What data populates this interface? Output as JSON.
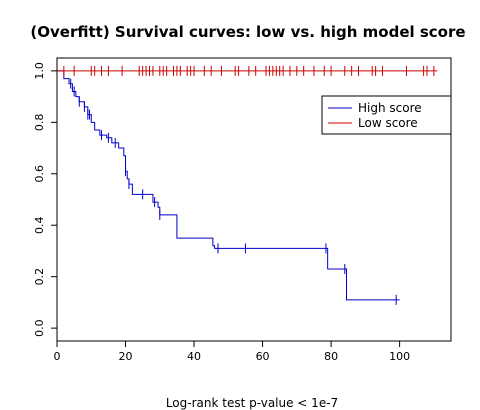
{
  "chart_data": {
    "type": "line",
    "title": "(Overfitt) Survival curves: low vs. high model score",
    "xlabel": "Log-rank test p-value  < 1e-7",
    "ylabel": "",
    "xlim": [
      0,
      115
    ],
    "ylim": [
      -0.05,
      1.05
    ],
    "x_ticks": [
      0,
      20,
      40,
      60,
      80,
      100
    ],
    "x_tick_labels": [
      "0",
      "20",
      "40",
      "60",
      "80",
      "100"
    ],
    "y_ticks": [
      0.0,
      0.2,
      0.4,
      0.6,
      0.8,
      1.0
    ],
    "y_tick_labels": [
      "0.0",
      "0.2",
      "0.4",
      "0.6",
      "0.8",
      "1.0"
    ],
    "grid": false,
    "legend_position": "top-right",
    "series": [
      {
        "name": "High score",
        "color": "#0000cc",
        "steps": [
          [
            0,
            1.0
          ],
          [
            2,
            0.97
          ],
          [
            3.5,
            0.95
          ],
          [
            4.5,
            0.92
          ],
          [
            5.5,
            0.9
          ],
          [
            6.5,
            0.88
          ],
          [
            8,
            0.86
          ],
          [
            9,
            0.83
          ],
          [
            10,
            0.8
          ],
          [
            11,
            0.77
          ],
          [
            12.5,
            0.75
          ],
          [
            14.5,
            0.74
          ],
          [
            16,
            0.72
          ],
          [
            18,
            0.7
          ],
          [
            19.5,
            0.67
          ],
          [
            20,
            0.61
          ],
          [
            20.5,
            0.58
          ],
          [
            21,
            0.56
          ],
          [
            22,
            0.52
          ],
          [
            27,
            0.52
          ],
          [
            28,
            0.49
          ],
          [
            29.5,
            0.47
          ],
          [
            30,
            0.44
          ],
          [
            35,
            0.35
          ],
          [
            45.5,
            0.32
          ],
          [
            46,
            0.31
          ],
          [
            78.5,
            0.31
          ],
          [
            79,
            0.23
          ],
          [
            84.5,
            0.11
          ],
          [
            100,
            0.11
          ]
        ],
        "censored_x": [
          4,
          5,
          6.5,
          8,
          9,
          9.5,
          13,
          15,
          17,
          20,
          21,
          25,
          28.5,
          30,
          47,
          55,
          78.5,
          84,
          99
        ]
      },
      {
        "name": "Low score",
        "color": "#cc0000",
        "steps": [
          [
            0,
            1.0
          ],
          [
            111,
            1.0
          ]
        ],
        "censored_x": [
          2,
          5,
          10,
          11,
          13,
          15,
          19,
          24,
          25,
          26,
          27,
          28,
          30,
          31,
          32,
          34,
          35,
          36,
          38,
          39,
          40,
          43,
          45,
          48,
          52,
          53,
          56,
          58,
          61,
          62,
          63,
          64,
          65,
          66,
          68,
          70,
          72,
          75,
          78,
          80,
          84,
          86,
          88,
          92,
          93,
          95,
          102,
          107,
          108,
          110
        ]
      }
    ]
  }
}
